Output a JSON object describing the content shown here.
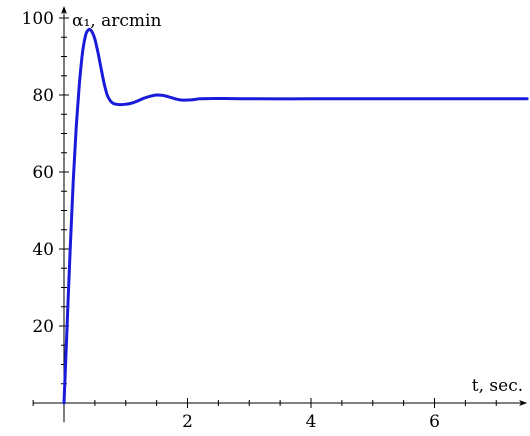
{
  "chart_data": {
    "type": "line",
    "title": "",
    "xlabel": "t, sec.",
    "ylabel": "α₁, arcmin",
    "xlim": [
      -0.5,
      7.5
    ],
    "ylim": [
      -5,
      100
    ],
    "x_ticks": [
      2,
      4,
      6
    ],
    "x_tick_labels": [
      "2",
      "4",
      "6"
    ],
    "y_ticks": [
      20,
      40,
      60,
      80,
      100
    ],
    "y_tick_labels": [
      "20",
      "40",
      "60",
      "80",
      "100"
    ],
    "x_minor_step": 0.5,
    "y_minor_step": 5,
    "grid": false,
    "series": [
      {
        "color": "#1a1adb",
        "points": [
          [
            0.0,
            0.0
          ],
          [
            0.05,
            20.0
          ],
          [
            0.1,
            40.0
          ],
          [
            0.15,
            58.0
          ],
          [
            0.2,
            72.0
          ],
          [
            0.25,
            83.0
          ],
          [
            0.3,
            91.0
          ],
          [
            0.35,
            95.5
          ],
          [
            0.4,
            97.0
          ],
          [
            0.45,
            96.5
          ],
          [
            0.5,
            94.5
          ],
          [
            0.55,
            91.0
          ],
          [
            0.6,
            87.0
          ],
          [
            0.65,
            83.0
          ],
          [
            0.7,
            80.0
          ],
          [
            0.75,
            78.5
          ],
          [
            0.8,
            77.8
          ],
          [
            0.9,
            77.5
          ],
          [
            1.0,
            77.6
          ],
          [
            1.1,
            77.9
          ],
          [
            1.2,
            78.5
          ],
          [
            1.3,
            79.2
          ],
          [
            1.4,
            79.7
          ],
          [
            1.5,
            80.0
          ],
          [
            1.6,
            79.9
          ],
          [
            1.7,
            79.5
          ],
          [
            1.8,
            79.0
          ],
          [
            1.9,
            78.7
          ],
          [
            2.0,
            78.7
          ],
          [
            2.1,
            78.8
          ],
          [
            2.2,
            79.0
          ],
          [
            2.4,
            79.1
          ],
          [
            2.6,
            79.1
          ],
          [
            3.0,
            79.0
          ],
          [
            4.0,
            79.0
          ],
          [
            5.0,
            79.0
          ],
          [
            6.0,
            79.0
          ],
          [
            7.0,
            79.0
          ],
          [
            7.5,
            79.0
          ]
        ]
      }
    ]
  }
}
